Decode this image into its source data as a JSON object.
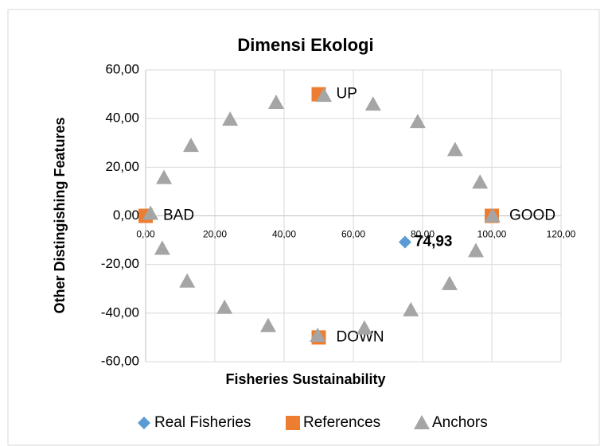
{
  "chart_data": {
    "type": "scatter",
    "title": "Dimensi Ekologi",
    "xlabel": "Fisheries Sustainability",
    "ylabel": "Other Distingishing Features",
    "xlim": [
      0,
      120
    ],
    "ylim": [
      -60,
      60
    ],
    "xticks": [
      {
        "value": 0,
        "label": "0,00"
      },
      {
        "value": 20,
        "label": "20,00"
      },
      {
        "value": 40,
        "label": "40,00"
      },
      {
        "value": 60,
        "label": "60,00"
      },
      {
        "value": 80,
        "label": "80,00"
      },
      {
        "value": 100,
        "label": "100,00"
      },
      {
        "value": 120,
        "label": "120,00"
      }
    ],
    "yticks": [
      {
        "value": -60,
        "label": "-60,00"
      },
      {
        "value": -40,
        "label": "-40,00"
      },
      {
        "value": -20,
        "label": "-20,00"
      },
      {
        "value": 0,
        "label": "0,00"
      },
      {
        "value": 20,
        "label": "20,00"
      },
      {
        "value": 40,
        "label": "40,00"
      },
      {
        "value": 60,
        "label": "60,00"
      }
    ],
    "grid": true,
    "legend": "bottom",
    "series": [
      {
        "name": "Real Fisheries",
        "color": "#5b9bd5",
        "marker": "diamond",
        "x": [
          74.93
        ],
        "y": [
          -10.8
        ],
        "value_labels": [
          "74,93"
        ]
      },
      {
        "name": "References",
        "color": "#ed7d31",
        "marker": "square",
        "x": [
          0,
          100,
          50,
          50
        ],
        "y": [
          0,
          0,
          50,
          -50
        ],
        "labels": [
          "BAD",
          "GOOD",
          "UP",
          "DOWN"
        ]
      },
      {
        "name": "Anchors",
        "color": "#a5a5a5",
        "marker": "triangle",
        "x": [
          1.4,
          5.3,
          13.1,
          24.4,
          37.7,
          51.5,
          65.7,
          78.6,
          89.4,
          96.6,
          100.2,
          95.4,
          87.8,
          76.6,
          63.2,
          49.7,
          35.4,
          22.8,
          12.0,
          4.8
        ],
        "y": [
          1.0,
          15.7,
          28.9,
          39.7,
          46.6,
          49.5,
          45.9,
          38.7,
          27.2,
          13.8,
          0,
          -14.4,
          -27.9,
          -38.7,
          -46.2,
          -49.2,
          -45.2,
          -37.7,
          -26.9,
          -13.4
        ]
      }
    ]
  }
}
